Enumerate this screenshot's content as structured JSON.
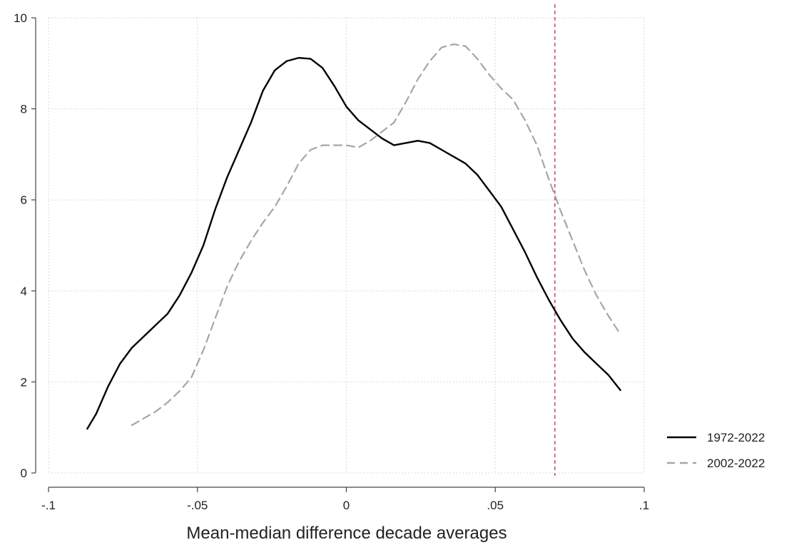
{
  "chart_data": {
    "type": "line",
    "title": "",
    "xlabel": "Mean-median difference decade averages",
    "ylabel": "",
    "xlim": [
      -0.1,
      0.1
    ],
    "ylim": [
      0,
      10
    ],
    "x_ticks": [
      -0.1,
      -0.05,
      0,
      0.05,
      0.1
    ],
    "x_tick_labels": [
      "-.1",
      "-.05",
      "0",
      ".05",
      ".1"
    ],
    "y_ticks": [
      0,
      2,
      4,
      6,
      8,
      10
    ],
    "y_tick_labels": [
      "0",
      "2",
      "4",
      "6",
      "8",
      "10"
    ],
    "grid": true,
    "legend_position": "right",
    "reference_line": {
      "axis": "x",
      "value": 0.07,
      "color": "#b5577a",
      "style": "dashed"
    },
    "series": [
      {
        "name": "1972-2022",
        "color": "#000000",
        "style": "solid",
        "points": [
          [
            -0.087,
            0.97
          ],
          [
            -0.084,
            1.3
          ],
          [
            -0.08,
            1.9
          ],
          [
            -0.076,
            2.4
          ],
          [
            -0.072,
            2.75
          ],
          [
            -0.068,
            3.0
          ],
          [
            -0.064,
            3.25
          ],
          [
            -0.06,
            3.5
          ],
          [
            -0.056,
            3.9
          ],
          [
            -0.052,
            4.4
          ],
          [
            -0.048,
            5.0
          ],
          [
            -0.044,
            5.8
          ],
          [
            -0.04,
            6.5
          ],
          [
            -0.036,
            7.1
          ],
          [
            -0.032,
            7.7
          ],
          [
            -0.028,
            8.4
          ],
          [
            -0.024,
            8.85
          ],
          [
            -0.02,
            9.05
          ],
          [
            -0.016,
            9.12
          ],
          [
            -0.012,
            9.1
          ],
          [
            -0.008,
            8.9
          ],
          [
            -0.004,
            8.5
          ],
          [
            0.0,
            8.05
          ],
          [
            0.004,
            7.75
          ],
          [
            0.008,
            7.55
          ],
          [
            0.012,
            7.35
          ],
          [
            0.016,
            7.2
          ],
          [
            0.02,
            7.25
          ],
          [
            0.024,
            7.3
          ],
          [
            0.028,
            7.25
          ],
          [
            0.032,
            7.1
          ],
          [
            0.036,
            6.95
          ],
          [
            0.04,
            6.8
          ],
          [
            0.044,
            6.55
          ],
          [
            0.048,
            6.2
          ],
          [
            0.052,
            5.85
          ],
          [
            0.056,
            5.35
          ],
          [
            0.06,
            4.85
          ],
          [
            0.064,
            4.3
          ],
          [
            0.068,
            3.8
          ],
          [
            0.072,
            3.35
          ],
          [
            0.076,
            2.95
          ],
          [
            0.08,
            2.65
          ],
          [
            0.084,
            2.4
          ],
          [
            0.088,
            2.15
          ],
          [
            0.092,
            1.82
          ]
        ]
      },
      {
        "name": "2002-2022",
        "color": "#a6a6a6",
        "style": "dashed",
        "points": [
          [
            -0.072,
            1.05
          ],
          [
            -0.068,
            1.2
          ],
          [
            -0.064,
            1.35
          ],
          [
            -0.06,
            1.55
          ],
          [
            -0.056,
            1.8
          ],
          [
            -0.052,
            2.1
          ],
          [
            -0.048,
            2.7
          ],
          [
            -0.044,
            3.4
          ],
          [
            -0.04,
            4.1
          ],
          [
            -0.036,
            4.65
          ],
          [
            -0.032,
            5.1
          ],
          [
            -0.028,
            5.5
          ],
          [
            -0.024,
            5.85
          ],
          [
            -0.02,
            6.3
          ],
          [
            -0.016,
            6.8
          ],
          [
            -0.012,
            7.1
          ],
          [
            -0.008,
            7.2
          ],
          [
            -0.004,
            7.2
          ],
          [
            0.0,
            7.2
          ],
          [
            0.004,
            7.15
          ],
          [
            0.008,
            7.3
          ],
          [
            0.012,
            7.5
          ],
          [
            0.016,
            7.7
          ],
          [
            0.02,
            8.15
          ],
          [
            0.024,
            8.65
          ],
          [
            0.028,
            9.05
          ],
          [
            0.032,
            9.35
          ],
          [
            0.036,
            9.42
          ],
          [
            0.04,
            9.38
          ],
          [
            0.044,
            9.1
          ],
          [
            0.048,
            8.75
          ],
          [
            0.052,
            8.45
          ],
          [
            0.056,
            8.2
          ],
          [
            0.06,
            7.75
          ],
          [
            0.064,
            7.2
          ],
          [
            0.068,
            6.45
          ],
          [
            0.072,
            5.75
          ],
          [
            0.076,
            5.1
          ],
          [
            0.08,
            4.45
          ],
          [
            0.084,
            3.9
          ],
          [
            0.088,
            3.45
          ],
          [
            0.092,
            3.05
          ]
        ]
      }
    ]
  }
}
